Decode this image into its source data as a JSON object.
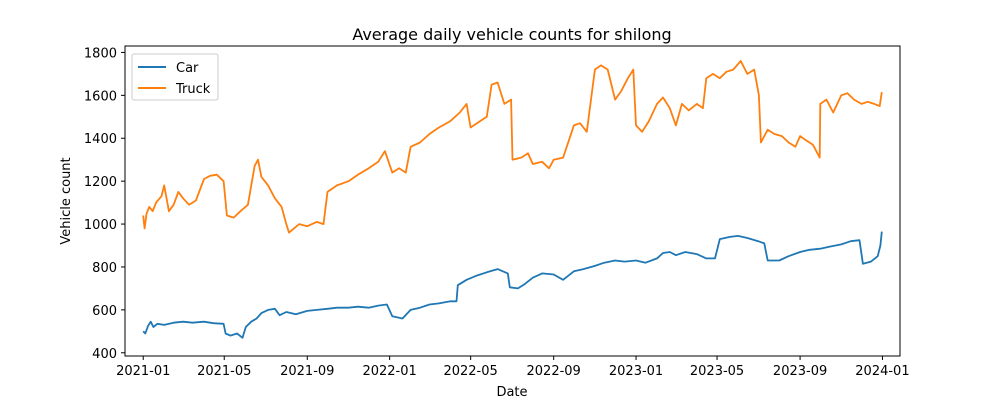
{
  "chart_data": {
    "type": "line",
    "title": "Average daily vehicle counts for shilong",
    "xlabel": "Date",
    "ylabel": "Vehicle count",
    "xlim": [
      "2020-12-05",
      "2024-01-27"
    ],
    "ylim": [
      385,
      1830
    ],
    "x_ticks": [
      "2021-01",
      "2021-05",
      "2021-09",
      "2022-01",
      "2022-05",
      "2022-09",
      "2023-01",
      "2023-05",
      "2023-09",
      "2024-01"
    ],
    "y_ticks": [
      400,
      600,
      800,
      1000,
      1200,
      1400,
      1600,
      1800
    ],
    "grid": false,
    "legend_position": "upper left",
    "series": [
      {
        "name": "Car",
        "color": "#1f77b4",
        "points": [
          [
            "2021-01-01",
            500
          ],
          [
            "2021-01-04",
            490
          ],
          [
            "2021-01-08",
            525
          ],
          [
            "2021-01-12",
            545
          ],
          [
            "2021-01-16",
            520
          ],
          [
            "2021-01-22",
            535
          ],
          [
            "2021-02-01",
            530
          ],
          [
            "2021-02-15",
            540
          ],
          [
            "2021-03-01",
            545
          ],
          [
            "2021-03-15",
            540
          ],
          [
            "2021-04-01",
            545
          ],
          [
            "2021-04-15",
            538
          ],
          [
            "2021-04-30",
            535
          ],
          [
            "2021-05-03",
            490
          ],
          [
            "2021-05-10",
            480
          ],
          [
            "2021-05-20",
            490
          ],
          [
            "2021-05-28",
            470
          ],
          [
            "2021-06-02",
            520
          ],
          [
            "2021-06-10",
            545
          ],
          [
            "2021-06-18",
            560
          ],
          [
            "2021-06-25",
            585
          ],
          [
            "2021-07-05",
            600
          ],
          [
            "2021-07-15",
            605
          ],
          [
            "2021-07-22",
            575
          ],
          [
            "2021-08-01",
            590
          ],
          [
            "2021-08-15",
            580
          ],
          [
            "2021-09-01",
            595
          ],
          [
            "2021-09-15",
            600
          ],
          [
            "2021-10-01",
            605
          ],
          [
            "2021-10-15",
            610
          ],
          [
            "2021-11-01",
            610
          ],
          [
            "2021-11-15",
            615
          ],
          [
            "2021-12-01",
            610
          ],
          [
            "2021-12-15",
            620
          ],
          [
            "2021-12-28",
            625
          ],
          [
            "2022-01-05",
            570
          ],
          [
            "2022-01-20",
            560
          ],
          [
            "2022-02-01",
            600
          ],
          [
            "2022-02-15",
            610
          ],
          [
            "2022-03-01",
            625
          ],
          [
            "2022-03-15",
            630
          ],
          [
            "2022-04-01",
            640
          ],
          [
            "2022-04-10",
            640
          ],
          [
            "2022-04-12",
            715
          ],
          [
            "2022-04-25",
            740
          ],
          [
            "2022-05-10",
            760
          ],
          [
            "2022-05-25",
            775
          ],
          [
            "2022-06-10",
            790
          ],
          [
            "2022-06-25",
            770
          ],
          [
            "2022-06-28",
            705
          ],
          [
            "2022-07-10",
            700
          ],
          [
            "2022-07-20",
            720
          ],
          [
            "2022-08-01",
            750
          ],
          [
            "2022-08-15",
            770
          ],
          [
            "2022-09-01",
            765
          ],
          [
            "2022-09-15",
            740
          ],
          [
            "2022-10-01",
            780
          ],
          [
            "2022-10-15",
            790
          ],
          [
            "2022-11-01",
            805
          ],
          [
            "2022-11-15",
            820
          ],
          [
            "2022-12-01",
            830
          ],
          [
            "2022-12-15",
            825
          ],
          [
            "2023-01-01",
            830
          ],
          [
            "2023-01-15",
            820
          ],
          [
            "2023-02-01",
            840
          ],
          [
            "2023-02-10",
            865
          ],
          [
            "2023-02-20",
            870
          ],
          [
            "2023-03-01",
            855
          ],
          [
            "2023-03-15",
            870
          ],
          [
            "2023-04-01",
            860
          ],
          [
            "2023-04-15",
            840
          ],
          [
            "2023-04-28",
            840
          ],
          [
            "2023-05-05",
            930
          ],
          [
            "2023-05-20",
            940
          ],
          [
            "2023-06-01",
            945
          ],
          [
            "2023-06-15",
            935
          ],
          [
            "2023-07-01",
            920
          ],
          [
            "2023-07-10",
            910
          ],
          [
            "2023-07-15",
            830
          ],
          [
            "2023-08-01",
            830
          ],
          [
            "2023-08-15",
            850
          ],
          [
            "2023-09-01",
            870
          ],
          [
            "2023-09-15",
            880
          ],
          [
            "2023-10-01",
            885
          ],
          [
            "2023-10-15",
            895
          ],
          [
            "2023-11-01",
            905
          ],
          [
            "2023-11-15",
            920
          ],
          [
            "2023-11-28",
            925
          ],
          [
            "2023-12-03",
            815
          ],
          [
            "2023-12-15",
            825
          ],
          [
            "2023-12-25",
            850
          ],
          [
            "2023-12-29",
            900
          ],
          [
            "2023-12-31",
            965
          ]
        ]
      },
      {
        "name": "Truck",
        "color": "#ff7f0e",
        "points": [
          [
            "2021-01-01",
            1040
          ],
          [
            "2021-01-03",
            980
          ],
          [
            "2021-01-06",
            1050
          ],
          [
            "2021-01-10",
            1080
          ],
          [
            "2021-01-15",
            1060
          ],
          [
            "2021-01-20",
            1100
          ],
          [
            "2021-01-28",
            1130
          ],
          [
            "2021-02-01",
            1180
          ],
          [
            "2021-02-08",
            1060
          ],
          [
            "2021-02-15",
            1090
          ],
          [
            "2021-02-22",
            1150
          ],
          [
            "2021-03-01",
            1120
          ],
          [
            "2021-03-10",
            1090
          ],
          [
            "2021-03-20",
            1110
          ],
          [
            "2021-04-01",
            1210
          ],
          [
            "2021-04-10",
            1225
          ],
          [
            "2021-04-20",
            1230
          ],
          [
            "2021-04-30",
            1200
          ],
          [
            "2021-05-05",
            1040
          ],
          [
            "2021-05-15",
            1030
          ],
          [
            "2021-05-25",
            1060
          ],
          [
            "2021-06-05",
            1090
          ],
          [
            "2021-06-15",
            1270
          ],
          [
            "2021-06-20",
            1300
          ],
          [
            "2021-06-25",
            1220
          ],
          [
            "2021-07-05",
            1180
          ],
          [
            "2021-07-15",
            1120
          ],
          [
            "2021-07-25",
            1080
          ],
          [
            "2021-08-01",
            1000
          ],
          [
            "2021-08-05",
            960
          ],
          [
            "2021-08-20",
            1000
          ],
          [
            "2021-09-01",
            990
          ],
          [
            "2021-09-15",
            1010
          ],
          [
            "2021-09-25",
            1000
          ],
          [
            "2021-10-01",
            1150
          ],
          [
            "2021-10-15",
            1180
          ],
          [
            "2021-11-01",
            1200
          ],
          [
            "2021-11-15",
            1230
          ],
          [
            "2021-12-01",
            1260
          ],
          [
            "2021-12-15",
            1290
          ],
          [
            "2021-12-25",
            1340
          ],
          [
            "2022-01-05",
            1240
          ],
          [
            "2022-01-15",
            1260
          ],
          [
            "2022-01-25",
            1240
          ],
          [
            "2022-02-01",
            1360
          ],
          [
            "2022-02-15",
            1380
          ],
          [
            "2022-03-01",
            1420
          ],
          [
            "2022-03-15",
            1450
          ],
          [
            "2022-04-01",
            1480
          ],
          [
            "2022-04-15",
            1520
          ],
          [
            "2022-04-25",
            1560
          ],
          [
            "2022-05-01",
            1450
          ],
          [
            "2022-05-15",
            1480
          ],
          [
            "2022-05-25",
            1500
          ],
          [
            "2022-06-01",
            1650
          ],
          [
            "2022-06-10",
            1660
          ],
          [
            "2022-06-20",
            1560
          ],
          [
            "2022-06-30",
            1580
          ],
          [
            "2022-07-02",
            1300
          ],
          [
            "2022-07-15",
            1310
          ],
          [
            "2022-07-25",
            1330
          ],
          [
            "2022-08-01",
            1280
          ],
          [
            "2022-08-15",
            1290
          ],
          [
            "2022-08-25",
            1260
          ],
          [
            "2022-09-01",
            1300
          ],
          [
            "2022-09-15",
            1310
          ],
          [
            "2022-10-01",
            1460
          ],
          [
            "2022-10-10",
            1470
          ],
          [
            "2022-10-20",
            1430
          ],
          [
            "2022-11-01",
            1720
          ],
          [
            "2022-11-10",
            1740
          ],
          [
            "2022-11-20",
            1720
          ],
          [
            "2022-12-01",
            1580
          ],
          [
            "2022-12-10",
            1620
          ],
          [
            "2022-12-20",
            1680
          ],
          [
            "2022-12-28",
            1720
          ],
          [
            "2023-01-01",
            1460
          ],
          [
            "2023-01-10",
            1430
          ],
          [
            "2023-01-20",
            1480
          ],
          [
            "2023-02-01",
            1560
          ],
          [
            "2023-02-10",
            1590
          ],
          [
            "2023-02-20",
            1540
          ],
          [
            "2023-03-01",
            1460
          ],
          [
            "2023-03-10",
            1560
          ],
          [
            "2023-03-20",
            1530
          ],
          [
            "2023-04-01",
            1560
          ],
          [
            "2023-04-10",
            1540
          ],
          [
            "2023-04-15",
            1680
          ],
          [
            "2023-04-25",
            1700
          ],
          [
            "2023-05-05",
            1680
          ],
          [
            "2023-05-15",
            1710
          ],
          [
            "2023-05-25",
            1720
          ],
          [
            "2023-06-05",
            1760
          ],
          [
            "2023-06-15",
            1700
          ],
          [
            "2023-06-25",
            1720
          ],
          [
            "2023-07-02",
            1600
          ],
          [
            "2023-07-05",
            1380
          ],
          [
            "2023-07-15",
            1440
          ],
          [
            "2023-07-25",
            1420
          ],
          [
            "2023-08-05",
            1410
          ],
          [
            "2023-08-15",
            1380
          ],
          [
            "2023-08-25",
            1360
          ],
          [
            "2023-09-01",
            1410
          ],
          [
            "2023-09-10",
            1390
          ],
          [
            "2023-09-20",
            1370
          ],
          [
            "2023-09-30",
            1310
          ],
          [
            "2023-10-01",
            1560
          ],
          [
            "2023-10-10",
            1580
          ],
          [
            "2023-10-20",
            1520
          ],
          [
            "2023-11-01",
            1600
          ],
          [
            "2023-11-10",
            1610
          ],
          [
            "2023-11-20",
            1580
          ],
          [
            "2023-12-01",
            1560
          ],
          [
            "2023-12-10",
            1570
          ],
          [
            "2023-12-20",
            1560
          ],
          [
            "2023-12-28",
            1550
          ],
          [
            "2023-12-31",
            1615
          ]
        ]
      }
    ]
  }
}
